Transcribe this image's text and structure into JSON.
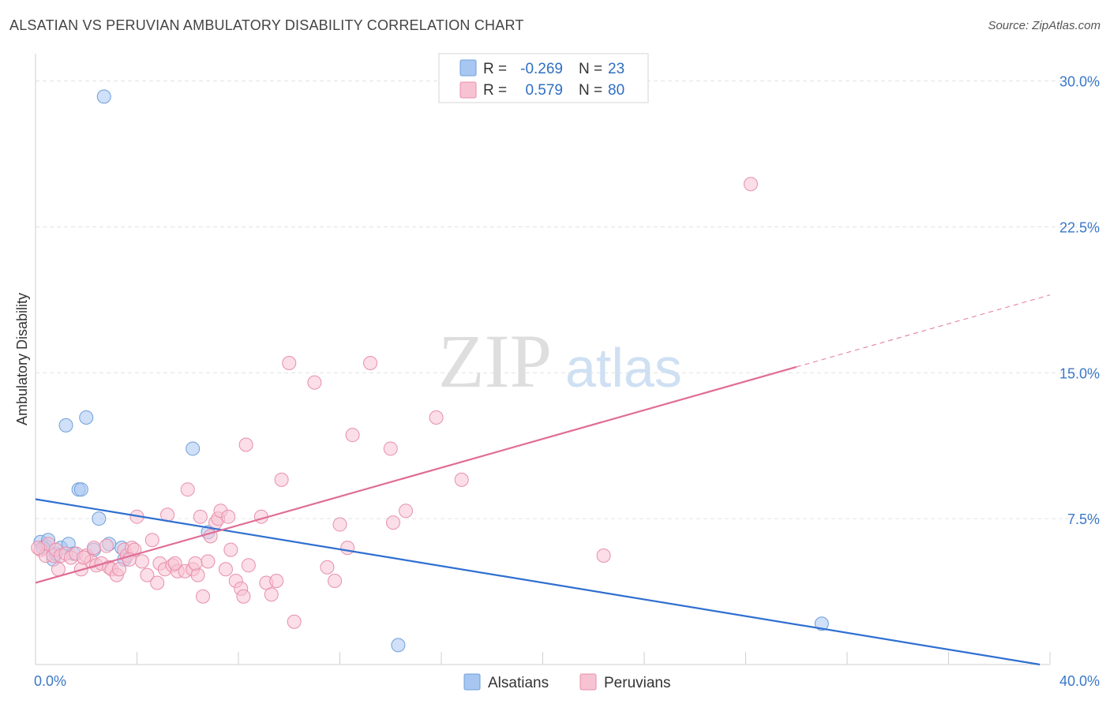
{
  "title": "ALSATIAN VS PERUVIAN AMBULATORY DISABILITY CORRELATION CHART",
  "source": "Source: ZipAtlas.com",
  "watermark": {
    "zip": "ZIP",
    "atlas": "atlas"
  },
  "legend_top": [
    {
      "r_label": "R =",
      "r_value": "-0.269",
      "n_label": "N =",
      "n_value": "23",
      "color": "#a7c7f2"
    },
    {
      "r_label": "R =",
      "r_value": "0.579",
      "n_label": "N =",
      "n_value": "80",
      "color": "#f7b8cb"
    }
  ],
  "colors": {
    "alsatians_fill": "#a7c7f2",
    "alsatians_stroke": "#6f9fd8",
    "alsatians_line": "#2f6fd0",
    "peruvians_fill": "#f7c3d3",
    "peruvians_stroke": "#e88fab",
    "peruvians_line": "#e06d96",
    "grid": "#e3e3e3",
    "tick_text": "#3a78c9"
  },
  "chart_data": {
    "type": "scatter",
    "title": "ALSATIAN VS PERUVIAN AMBULATORY DISABILITY CORRELATION CHART",
    "xlabel": "",
    "ylabel": "Ambulatory Disability",
    "xlim": [
      0,
      40
    ],
    "ylim": [
      0,
      31
    ],
    "x_tick_labels": [
      "0.0%",
      "40.0%"
    ],
    "y_ticks": [
      7.5,
      15.0,
      22.5,
      30.0
    ],
    "y_tick_labels": [
      "7.5%",
      "15.0%",
      "22.5%",
      "30.0%"
    ],
    "grid": true,
    "legend_position": "bottom",
    "series": [
      {
        "name": "Alsatians",
        "r": -0.269,
        "n": 23,
        "points": [
          [
            0.2,
            6.3
          ],
          [
            0.4,
            6.1
          ],
          [
            0.5,
            6.4
          ],
          [
            0.7,
            5.4
          ],
          [
            0.8,
            5.7
          ],
          [
            1.0,
            6.0
          ],
          [
            1.2,
            12.3
          ],
          [
            1.3,
            6.2
          ],
          [
            1.5,
            5.7
          ],
          [
            1.7,
            9.0
          ],
          [
            1.8,
            9.0
          ],
          [
            2.0,
            12.7
          ],
          [
            2.3,
            5.9
          ],
          [
            2.5,
            7.5
          ],
          [
            2.7,
            29.2
          ],
          [
            2.9,
            6.2
          ],
          [
            3.4,
            6.0
          ],
          [
            3.5,
            5.4
          ],
          [
            6.2,
            11.1
          ],
          [
            6.8,
            6.8
          ],
          [
            14.3,
            1.0
          ],
          [
            31.0,
            2.1
          ],
          [
            0.3,
            6.0
          ]
        ],
        "trend": {
          "x": [
            0,
            39.6
          ],
          "y": [
            8.5,
            0.0
          ],
          "dashed_extension": false
        }
      },
      {
        "name": "Peruvians",
        "r": 0.579,
        "n": 80,
        "points": [
          [
            0.2,
            5.9
          ],
          [
            0.4,
            5.6
          ],
          [
            0.5,
            6.2
          ],
          [
            0.7,
            5.6
          ],
          [
            0.8,
            5.9
          ],
          [
            1.0,
            5.6
          ],
          [
            1.2,
            5.7
          ],
          [
            1.4,
            5.5
          ],
          [
            1.6,
            5.7
          ],
          [
            1.8,
            4.9
          ],
          [
            2.0,
            5.6
          ],
          [
            2.2,
            5.3
          ],
          [
            2.3,
            6.0
          ],
          [
            2.4,
            5.1
          ],
          [
            2.6,
            5.2
          ],
          [
            2.8,
            6.1
          ],
          [
            2.9,
            5.0
          ],
          [
            3.0,
            4.9
          ],
          [
            3.2,
            4.6
          ],
          [
            3.3,
            4.9
          ],
          [
            3.5,
            5.9
          ],
          [
            3.6,
            5.6
          ],
          [
            3.8,
            6.0
          ],
          [
            3.9,
            5.9
          ],
          [
            4.0,
            7.6
          ],
          [
            4.2,
            5.3
          ],
          [
            4.4,
            4.6
          ],
          [
            4.6,
            6.4
          ],
          [
            4.8,
            4.2
          ],
          [
            4.9,
            5.2
          ],
          [
            5.1,
            4.9
          ],
          [
            5.2,
            7.7
          ],
          [
            5.4,
            5.1
          ],
          [
            5.6,
            4.8
          ],
          [
            5.9,
            4.8
          ],
          [
            6.0,
            9.0
          ],
          [
            6.2,
            4.9
          ],
          [
            6.4,
            4.6
          ],
          [
            6.5,
            7.6
          ],
          [
            6.6,
            3.5
          ],
          [
            6.8,
            5.3
          ],
          [
            6.9,
            6.6
          ],
          [
            7.1,
            7.3
          ],
          [
            7.2,
            7.5
          ],
          [
            7.3,
            7.9
          ],
          [
            7.5,
            4.9
          ],
          [
            7.6,
            7.6
          ],
          [
            7.7,
            5.9
          ],
          [
            7.9,
            4.3
          ],
          [
            8.1,
            3.9
          ],
          [
            8.2,
            3.5
          ],
          [
            8.3,
            11.3
          ],
          [
            8.4,
            5.1
          ],
          [
            8.9,
            7.6
          ],
          [
            9.1,
            4.2
          ],
          [
            9.3,
            3.6
          ],
          [
            9.5,
            4.3
          ],
          [
            9.7,
            9.5
          ],
          [
            10.0,
            15.5
          ],
          [
            10.2,
            2.2
          ],
          [
            11.0,
            14.5
          ],
          [
            11.5,
            5.0
          ],
          [
            11.8,
            4.3
          ],
          [
            12.0,
            7.2
          ],
          [
            12.3,
            6.0
          ],
          [
            12.5,
            11.8
          ],
          [
            13.2,
            15.5
          ],
          [
            14.0,
            11.1
          ],
          [
            14.1,
            7.3
          ],
          [
            14.6,
            7.9
          ],
          [
            15.8,
            12.7
          ],
          [
            16.8,
            9.5
          ],
          [
            22.4,
            5.6
          ],
          [
            28.2,
            24.7
          ],
          [
            0.9,
            4.9
          ],
          [
            1.9,
            5.5
          ],
          [
            3.7,
            5.4
          ],
          [
            5.5,
            5.2
          ],
          [
            6.3,
            5.2
          ],
          [
            0.1,
            6.0
          ]
        ],
        "trend": {
          "x": [
            0,
            30.0
          ],
          "y": [
            4.2,
            15.3
          ],
          "dashed_extension": true,
          "dash_to": [
            40.0,
            19.0
          ]
        }
      }
    ]
  }
}
